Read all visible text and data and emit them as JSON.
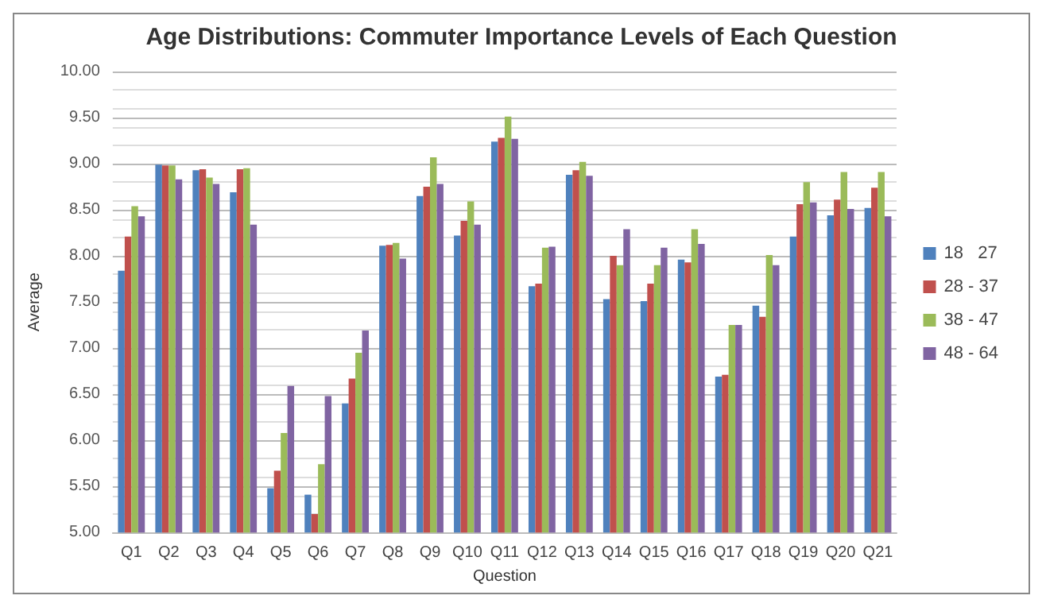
{
  "chart_data": {
    "type": "bar",
    "title": "Age Distributions: Commuter Importance Levels of Each Question",
    "xlabel": "Question",
    "ylabel": "Average",
    "categories": [
      "Q1",
      "Q2",
      "Q3",
      "Q4",
      "Q5",
      "Q6",
      "Q7",
      "Q8",
      "Q9",
      "Q10",
      "Q11",
      "Q12",
      "Q13",
      "Q14",
      "Q15",
      "Q16",
      "Q17",
      "Q18",
      "Q19",
      "Q20",
      "Q21"
    ],
    "series": [
      {
        "name": "18   27",
        "color": "#4f81bd",
        "values": [
          7.84,
          8.99,
          8.93,
          8.69,
          5.48,
          5.41,
          6.4,
          8.11,
          8.65,
          8.22,
          9.24,
          7.67,
          8.88,
          7.53,
          7.51,
          7.96,
          6.69,
          7.46,
          8.21,
          8.44,
          8.52
        ]
      },
      {
        "name": "28 - 37",
        "color": "#c0504d",
        "values": [
          8.21,
          8.98,
          8.94,
          8.94,
          5.67,
          5.2,
          6.67,
          8.12,
          8.75,
          8.38,
          9.28,
          7.7,
          8.93,
          8.0,
          7.7,
          7.93,
          6.71,
          7.34,
          8.56,
          8.61,
          8.74
        ]
      },
      {
        "name": "38 - 47",
        "color": "#9bbb59",
        "values": [
          8.54,
          8.98,
          8.85,
          8.95,
          6.08,
          5.74,
          6.95,
          8.14,
          9.07,
          8.59,
          9.51,
          8.09,
          9.02,
          7.9,
          7.9,
          8.29,
          7.25,
          8.01,
          8.8,
          8.91,
          8.91
        ]
      },
      {
        "name": "48 - 64",
        "color": "#8064a2",
        "values": [
          8.43,
          8.83,
          8.78,
          8.34,
          6.59,
          6.48,
          7.19,
          7.97,
          8.78,
          8.34,
          9.27,
          8.1,
          8.87,
          8.29,
          8.09,
          8.13,
          7.25,
          7.9,
          8.58,
          8.51,
          8.43
        ]
      }
    ],
    "ylim": [
      5,
      10
    ],
    "yticks": [
      {
        "value": 5,
        "label": "5.00"
      },
      {
        "value": 5.5,
        "label": "5.50"
      },
      {
        "value": 6,
        "label": "6.00"
      },
      {
        "value": 6.5,
        "label": "6.50"
      },
      {
        "value": 7,
        "label": "7.00"
      },
      {
        "value": 7.5,
        "label": "7.50"
      },
      {
        "value": 8,
        "label": "8.00"
      },
      {
        "value": 8.5,
        "label": "8.50"
      },
      {
        "value": 9,
        "label": "9.00"
      },
      {
        "value": 9.5,
        "label": "9.50"
      },
      {
        "value": 10,
        "label": "10.00"
      }
    ],
    "grid": "y",
    "legend": "right"
  }
}
